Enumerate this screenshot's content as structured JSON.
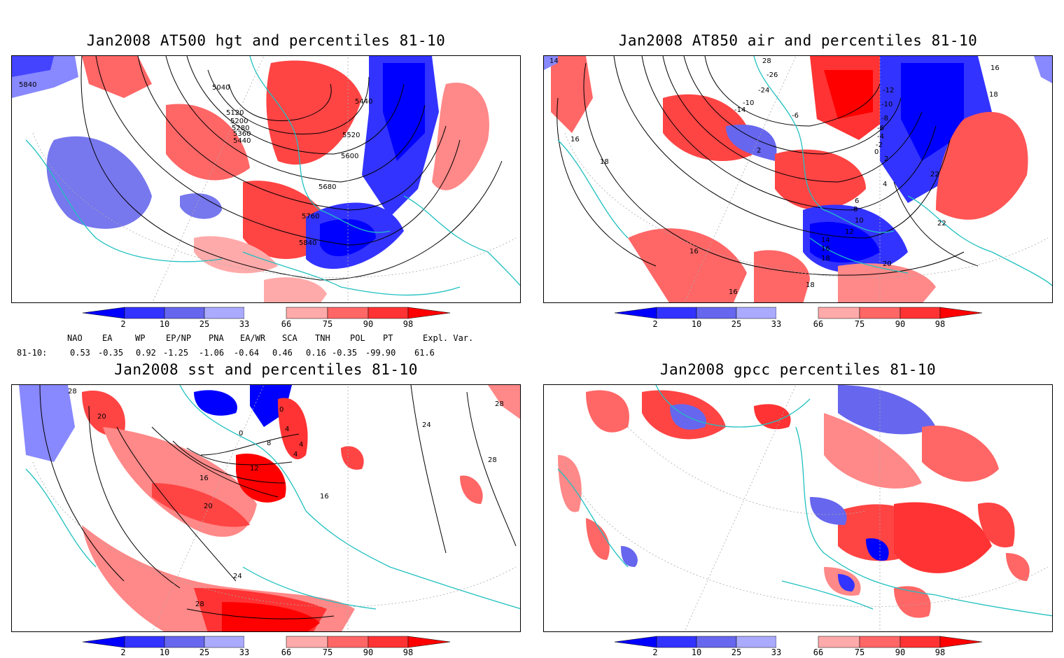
{
  "panels": [
    {
      "title": "Jan2008 AT500 hgt and percentiles 81-10",
      "contour_labels": [
        "5840",
        "5040",
        "5120",
        "5200",
        "5280",
        "5360",
        "5440",
        "5440",
        "5520",
        "5600",
        "5680",
        "5760",
        "5840"
      ]
    },
    {
      "title": "Jan2008 AT850 air and percentiles 81-10",
      "contour_labels": [
        "14",
        "28",
        "-26",
        "-24",
        "-14",
        "-10",
        "-6",
        "-12",
        "-10",
        "-8",
        "-6",
        "-4",
        "-2",
        "0",
        "2",
        "2",
        "4",
        "6",
        "8",
        "10",
        "12",
        "14",
        "16",
        "18",
        "16",
        "18",
        "22",
        "22",
        "20",
        "18",
        "16",
        "16",
        "16",
        "18"
      ]
    },
    {
      "title": "Jan2008 sst and percentiles 81-10",
      "contour_labels": [
        "28",
        "20",
        "0",
        "0",
        "4",
        "8",
        "4",
        "4",
        "16",
        "12",
        "20",
        "16",
        "24",
        "28",
        "28",
        "24",
        "28"
      ]
    },
    {
      "title": "Jan2008 gpcc percentiles 81-10",
      "contour_labels": []
    }
  ],
  "colorbar": {
    "labels": [
      "2",
      "10",
      "25",
      "33",
      "66",
      "75",
      "90",
      "98"
    ],
    "colors": {
      "b1": "#0000ff",
      "b2": "#3333ff",
      "b3": "#6666ee",
      "b4": "#aaaaff",
      "r1": "#ffaaaa",
      "r2": "#ff6666",
      "r3": "#ff3333",
      "r4": "#ff0000"
    }
  },
  "teleconnections": {
    "headers": [
      "NAO",
      "EA",
      "WP",
      "EP/NP",
      "PNA",
      "EA/WR",
      "SCA",
      "TNH",
      "POL",
      "PT",
      "Expl. Var."
    ],
    "row_label": "81-10:",
    "values": [
      "0.53",
      "-0.35",
      "0.92",
      "-1.25",
      "-1.06",
      "-0.64",
      "0.46",
      "0.16",
      "-0.35",
      "-99.90",
      "61.6"
    ]
  },
  "colors": {
    "coast": "#20c0c0",
    "contour": "#000000",
    "grid": "#aaaaaa"
  }
}
